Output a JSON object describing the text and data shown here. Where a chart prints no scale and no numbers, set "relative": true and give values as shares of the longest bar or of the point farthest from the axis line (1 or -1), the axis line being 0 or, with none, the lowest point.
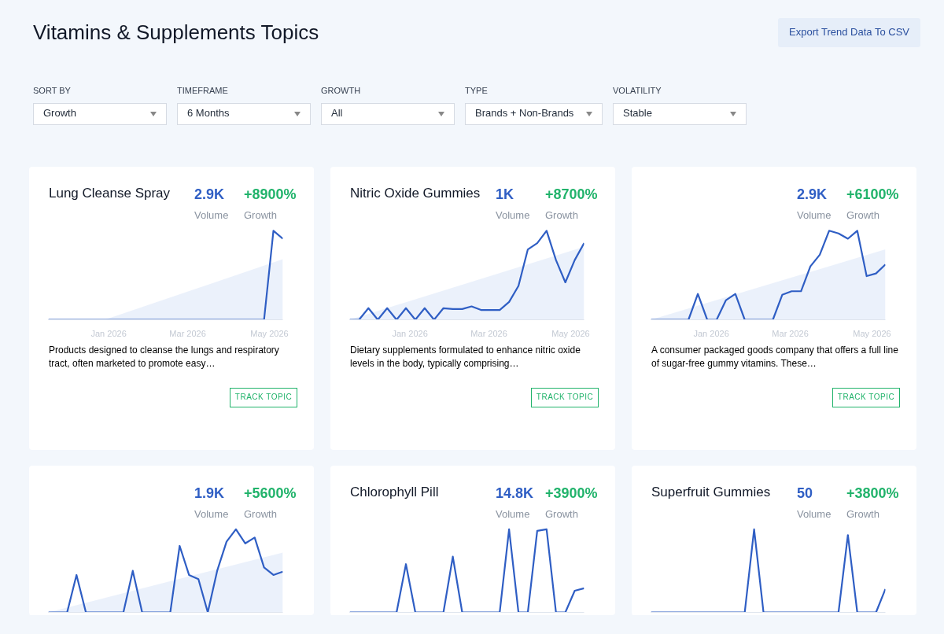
{
  "chart_data": [
    {
      "type": "other",
      "title": "Vitamins & Supplements Topics",
      "annotations": [
        "SORT BY",
        "Growth",
        "TIMEFRAME",
        "6 Months",
        "GROWTH",
        "All",
        "TYPE",
        "Brands + Non-Brands",
        "VOLATILITY",
        "Stable",
        "Export Trend Data To CSV"
      ]
    },
    {
      "type": "line",
      "title": "Lung Cleanse Spray",
      "relative": true,
      "x": [
        "2025-11-17",
        "2025-11-24",
        "2025-12-01",
        "2025-12-08",
        "2025-12-15",
        "2025-12-22",
        "2025-12-29",
        "2026-01-05",
        "2026-01-12",
        "2026-01-19",
        "2026-01-26",
        "2026-02-02",
        "2026-02-09",
        "2026-02-16",
        "2026-02-23",
        "2026-03-02",
        "2026-03-09",
        "2026-03-16",
        "2026-03-23",
        "2026-03-30",
        "2026-04-06",
        "2026-04-13",
        "2026-04-20",
        "2026-04-27",
        "2026-05-04",
        "2026-05-11"
      ],
      "xlim": [
        "2025-11-17",
        "2026-05-11"
      ],
      "xticks": [
        {
          "value": "2026-01-01",
          "label": "Jan 2026"
        },
        {
          "value": "2026-03-01",
          "label": "Mar 2026"
        },
        {
          "value": "2026-05-01",
          "label": "May 2026"
        }
      ],
      "series": [
        {
          "type": "area",
          "color": "#e9f0fb",
          "x": [
            "2025-12-29",
            "2026-05-11"
          ],
          "values": [
            0,
            0.68
          ]
        },
        {
          "type": "line",
          "color": "#2f5ec4",
          "values": [
            0,
            0,
            0,
            0,
            0,
            0,
            0,
            0,
            0,
            0,
            0,
            0,
            0,
            0,
            0,
            0,
            0,
            0,
            0,
            0,
            0,
            0,
            0,
            0,
            1,
            0.91
          ]
        }
      ],
      "annotations": [
        "2.9K",
        "Volume",
        "+8900%",
        "Growth",
        "Products designed to cleanse the lungs and respiratory tract, often marketed to promote easy…",
        "TRACK TOPIC"
      ]
    },
    {
      "type": "line",
      "title": "Nitric Oxide Gummies",
      "relative": true,
      "x": [
        "2025-11-17",
        "2025-11-24",
        "2025-12-01",
        "2025-12-08",
        "2025-12-15",
        "2025-12-22",
        "2025-12-29",
        "2026-01-05",
        "2026-01-12",
        "2026-01-19",
        "2026-01-26",
        "2026-02-02",
        "2026-02-09",
        "2026-02-16",
        "2026-02-23",
        "2026-03-02",
        "2026-03-09",
        "2026-03-16",
        "2026-03-23",
        "2026-03-30",
        "2026-04-06",
        "2026-04-13",
        "2026-04-20",
        "2026-04-27",
        "2026-05-04",
        "2026-05-11"
      ],
      "xlim": [
        "2025-11-17",
        "2026-05-11"
      ],
      "xticks": [
        {
          "value": "2026-01-01",
          "label": "Jan 2026"
        },
        {
          "value": "2026-03-01",
          "label": "Mar 2026"
        },
        {
          "value": "2026-05-01",
          "label": "May 2026"
        }
      ],
      "series": [
        {
          "type": "area",
          "color": "#e9f0fb",
          "x": [
            "2025-11-17",
            "2026-05-11"
          ],
          "values": [
            0,
            0.82
          ]
        },
        {
          "type": "line",
          "color": "#2f5ec4",
          "values": [
            0,
            0,
            0.13,
            0,
            0.13,
            0,
            0.13,
            0,
            0.13,
            0,
            0.13,
            0.12,
            0.12,
            0.15,
            0.11,
            0.11,
            0.11,
            0.2,
            0.38,
            0.79,
            0.86,
            1,
            0.67,
            0.42,
            0.67,
            0.86
          ]
        }
      ],
      "annotations": [
        "1K",
        "Volume",
        "+8700%",
        "Growth",
        "Dietary supplements formulated to enhance nitric oxide levels in the body, typically comprising…",
        "TRACK TOPIC"
      ]
    },
    {
      "type": "line",
      "relative": true,
      "x": [
        "2025-11-17",
        "2025-11-24",
        "2025-12-01",
        "2025-12-08",
        "2025-12-15",
        "2025-12-22",
        "2025-12-29",
        "2026-01-05",
        "2026-01-12",
        "2026-01-19",
        "2026-01-26",
        "2026-02-02",
        "2026-02-09",
        "2026-02-16",
        "2026-02-23",
        "2026-03-02",
        "2026-03-09",
        "2026-03-16",
        "2026-03-23",
        "2026-03-30",
        "2026-04-06",
        "2026-04-13",
        "2026-04-20",
        "2026-04-27",
        "2026-05-04",
        "2026-05-11"
      ],
      "xlim": [
        "2025-11-17",
        "2026-05-11"
      ],
      "xticks": [
        {
          "value": "2026-01-01",
          "label": "Jan 2026"
        },
        {
          "value": "2026-03-01",
          "label": "Mar 2026"
        },
        {
          "value": "2026-05-01",
          "label": "May 2026"
        }
      ],
      "series": [
        {
          "type": "area",
          "color": "#e9f0fb",
          "x": [
            "2025-11-17",
            "2026-05-11"
          ],
          "values": [
            0,
            0.79
          ]
        },
        {
          "type": "line",
          "color": "#2f5ec4",
          "values": [
            0,
            0,
            0,
            0,
            0,
            0.29,
            0,
            0,
            0.22,
            0.29,
            0,
            0,
            0,
            0,
            0.28,
            0.32,
            0.32,
            0.6,
            0.73,
            1,
            0.97,
            0.91,
            1,
            0.49,
            0.52,
            0.62
          ]
        }
      ],
      "annotations": [
        "2.9K",
        "Volume",
        "+6100%",
        "Growth",
        "A consumer packaged goods company that offers a full line of sugar-free gummy vitamins. These…",
        "TRACK TOPIC"
      ]
    },
    {
      "type": "line",
      "relative": true,
      "x": [
        "2025-11-17",
        "2025-11-24",
        "2025-12-01",
        "2025-12-08",
        "2025-12-15",
        "2025-12-22",
        "2025-12-29",
        "2026-01-05",
        "2026-01-12",
        "2026-01-19",
        "2026-01-26",
        "2026-02-02",
        "2026-02-09",
        "2026-02-16",
        "2026-02-23",
        "2026-03-02",
        "2026-03-09",
        "2026-03-16",
        "2026-03-23",
        "2026-03-30",
        "2026-04-06",
        "2026-04-13",
        "2026-04-20",
        "2026-04-27",
        "2026-05-04",
        "2026-05-11"
      ],
      "xlim": [
        "2025-11-17",
        "2026-05-11"
      ],
      "series": [
        {
          "type": "area",
          "color": "#e9f0fb",
          "x": [
            "2025-11-17",
            "2026-05-11"
          ],
          "values": [
            0,
            0.72
          ]
        },
        {
          "type": "line",
          "color": "#2f5ec4",
          "values": [
            0,
            0,
            0,
            0.45,
            0,
            0,
            0,
            0,
            0,
            0.5,
            0,
            0,
            0,
            0,
            0.8,
            0.45,
            0.4,
            0,
            0.5,
            0.85,
            1,
            0.83,
            0.9,
            0.54,
            0.45,
            0.49
          ]
        }
      ],
      "annotations": [
        "1.9K",
        "Volume",
        "+5600%",
        "Growth"
      ]
    },
    {
      "type": "line",
      "title": "Chlorophyll Pill",
      "relative": true,
      "categories": [
        null,
        null,
        null,
        null,
        null,
        null,
        null,
        null,
        null,
        null,
        null,
        null,
        null,
        null,
        null,
        null,
        null,
        null,
        null,
        null,
        null,
        null,
        null,
        null,
        null,
        null
      ],
      "series": [
        {
          "type": "line",
          "color": "#2f5ec4",
          "values": [
            0,
            0,
            0,
            0,
            0,
            0,
            0.58,
            0,
            0,
            0,
            0,
            0.67,
            0,
            0,
            0,
            0,
            0,
            1,
            0,
            0,
            0.98,
            1,
            0,
            0,
            0.26,
            0.29
          ]
        }
      ],
      "annotations": [
        "14.8K",
        "Volume",
        "+3900%",
        "Growth"
      ]
    },
    {
      "type": "line",
      "title": "Superfruit Gummies",
      "relative": true,
      "categories": [
        null,
        null,
        null,
        null,
        null,
        null,
        null,
        null,
        null,
        null,
        null,
        null,
        null,
        null,
        null,
        null,
        null,
        null,
        null,
        null,
        null,
        null,
        null,
        null,
        null,
        null
      ],
      "series": [
        {
          "type": "line",
          "color": "#2f5ec4",
          "values": [
            0,
            0,
            0,
            0,
            0,
            0,
            0,
            0,
            0,
            0,
            0,
            1,
            0,
            0,
            0,
            0,
            0,
            0,
            0,
            0,
            0,
            0.93,
            0,
            0,
            0,
            0.28
          ]
        }
      ],
      "annotations": [
        "50",
        "Volume",
        "+3800%",
        "Growth"
      ]
    }
  ]
}
